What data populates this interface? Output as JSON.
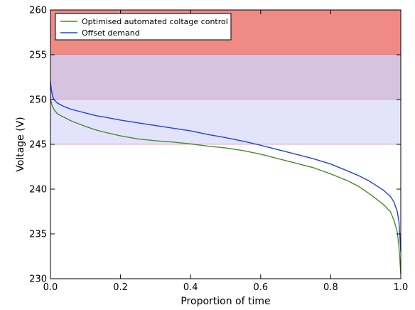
{
  "chart_data": {
    "type": "line",
    "title": "",
    "xlabel": "Proportion of time",
    "ylabel": "Voltage (V)",
    "xlim": [
      0.0,
      1.0
    ],
    "ylim": [
      230,
      260
    ],
    "xticks": [
      0.0,
      0.2,
      0.4,
      0.6,
      0.8,
      1.0
    ],
    "xtick_labels": [
      "0.0",
      "0.2",
      "0.4",
      "0.6",
      "0.8",
      "1.0"
    ],
    "yticks": [
      230,
      235,
      240,
      245,
      250,
      255,
      260
    ],
    "ytick_labels": [
      "230",
      "235",
      "240",
      "245",
      "250",
      "255",
      "260"
    ],
    "grid": false,
    "legend_position": "top-left",
    "bands": [
      {
        "ymin": 255,
        "ymax": 260,
        "color": "#ef8a84"
      },
      {
        "ymin": 250,
        "ymax": 255,
        "color": "#d6c3df"
      },
      {
        "ymin": 245,
        "ymax": 250,
        "color": "#e3e4fb"
      }
    ],
    "series": [
      {
        "name": "Optimised automated coltage control",
        "color": "#4a8a2e",
        "points": [
          [
            0.0,
            250.0
          ],
          [
            0.005,
            249.3
          ],
          [
            0.01,
            248.9
          ],
          [
            0.02,
            248.4
          ],
          [
            0.04,
            248.0
          ],
          [
            0.06,
            247.6
          ],
          [
            0.08,
            247.3
          ],
          [
            0.1,
            247.0
          ],
          [
            0.13,
            246.6
          ],
          [
            0.16,
            246.3
          ],
          [
            0.2,
            245.95
          ],
          [
            0.25,
            245.6
          ],
          [
            0.3,
            245.4
          ],
          [
            0.35,
            245.25
          ],
          [
            0.4,
            245.05
          ],
          [
            0.45,
            244.8
          ],
          [
            0.5,
            244.6
          ],
          [
            0.55,
            244.3
          ],
          [
            0.6,
            243.9
          ],
          [
            0.65,
            243.4
          ],
          [
            0.7,
            242.9
          ],
          [
            0.75,
            242.4
          ],
          [
            0.8,
            241.7
          ],
          [
            0.85,
            240.9
          ],
          [
            0.88,
            240.3
          ],
          [
            0.91,
            239.5
          ],
          [
            0.93,
            238.9
          ],
          [
            0.95,
            238.3
          ],
          [
            0.97,
            237.5
          ],
          [
            0.98,
            236.6
          ],
          [
            0.99,
            235.2
          ],
          [
            0.995,
            233.5
          ],
          [
            1.0,
            230.5
          ]
        ]
      },
      {
        "name": "Offset demand",
        "color": "#1f3ff0",
        "points": [
          [
            0.0,
            252.0
          ],
          [
            0.003,
            251.0
          ],
          [
            0.006,
            250.4
          ],
          [
            0.01,
            250.0
          ],
          [
            0.02,
            249.6
          ],
          [
            0.04,
            249.2
          ],
          [
            0.06,
            248.9
          ],
          [
            0.08,
            248.7
          ],
          [
            0.1,
            248.5
          ],
          [
            0.13,
            248.2
          ],
          [
            0.16,
            248.0
          ],
          [
            0.2,
            247.7
          ],
          [
            0.25,
            247.4
          ],
          [
            0.3,
            247.1
          ],
          [
            0.35,
            246.8
          ],
          [
            0.4,
            246.5
          ],
          [
            0.45,
            246.1
          ],
          [
            0.5,
            245.75
          ],
          [
            0.55,
            245.35
          ],
          [
            0.6,
            244.9
          ],
          [
            0.65,
            244.4
          ],
          [
            0.7,
            243.9
          ],
          [
            0.75,
            243.4
          ],
          [
            0.8,
            242.8
          ],
          [
            0.85,
            242.0
          ],
          [
            0.88,
            241.5
          ],
          [
            0.91,
            240.9
          ],
          [
            0.93,
            240.4
          ],
          [
            0.95,
            239.9
          ],
          [
            0.97,
            239.2
          ],
          [
            0.98,
            238.6
          ],
          [
            0.99,
            237.5
          ],
          [
            0.995,
            236.3
          ],
          [
            1.0,
            233.0
          ]
        ]
      }
    ]
  }
}
